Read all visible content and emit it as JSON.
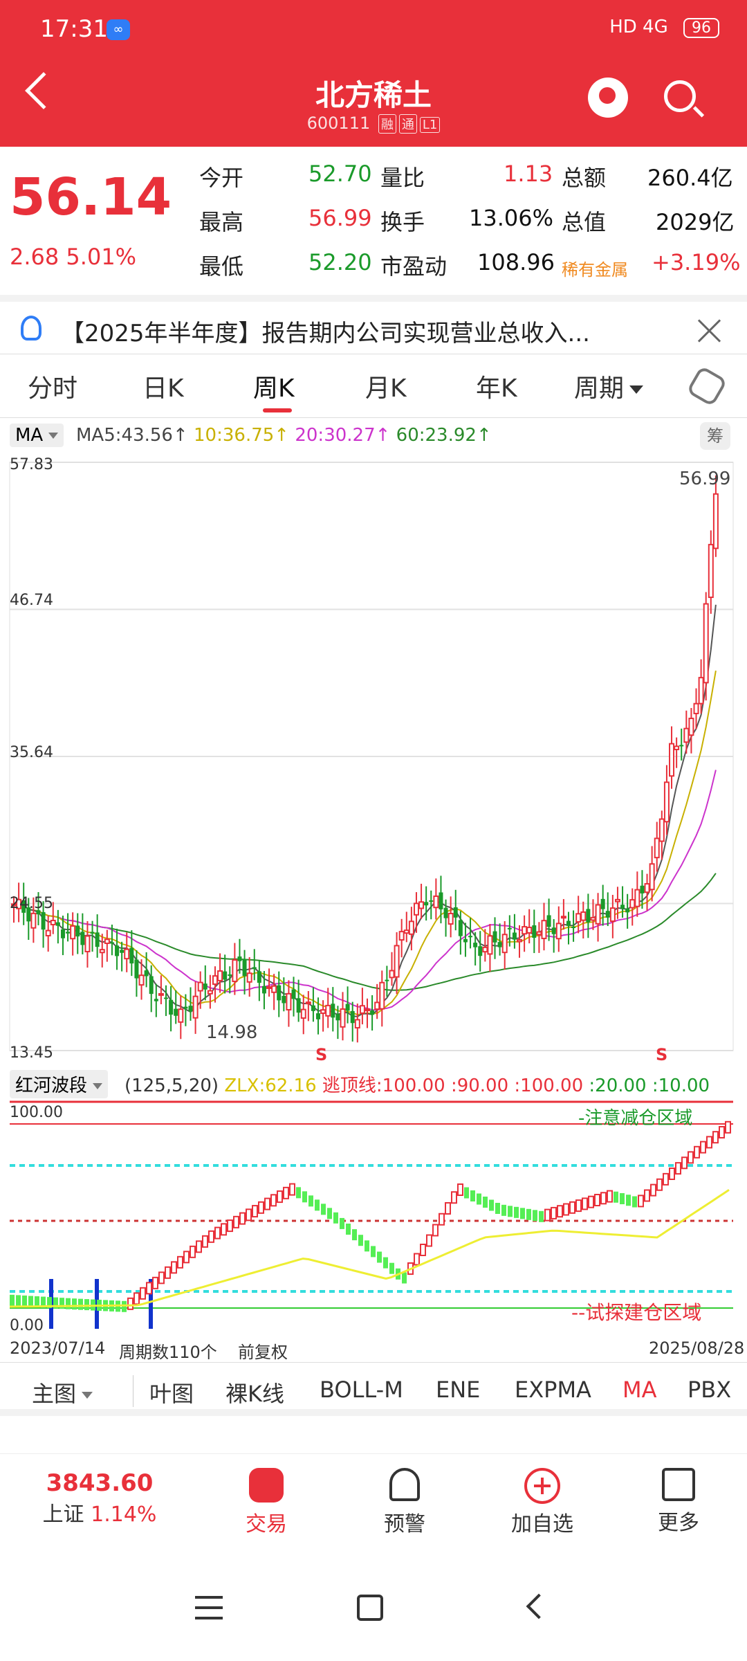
{
  "status": {
    "time": "17:31",
    "right": "HD 4G",
    "battery": "96"
  },
  "header": {
    "title": "北方稀土",
    "code": "600111",
    "tag1": "融",
    "tag2": "通",
    "tag3": "L1"
  },
  "quote": {
    "price": "56.14",
    "change": "2.68 5.01%",
    "open_label": "今开",
    "open": "52.70",
    "vr_label": "量比",
    "vr": "1.13",
    "amt_label": "总额",
    "amt": "260.4亿",
    "high_label": "最高",
    "high": "56.99",
    "turnover_label": "换手",
    "turnover": "13.06%",
    "mcap_label": "总值",
    "mcap": "2029亿",
    "low_label": "最低",
    "low": "52.20",
    "pe_label": "市盈动",
    "pe": "108.96",
    "sector": "稀有金属",
    "sector_change": "+3.19%"
  },
  "notice": {
    "text": "【2025年半年度】报告期内公司实现营业总收入..."
  },
  "tabs": [
    "分时",
    "日K",
    "周K",
    "月K",
    "年K",
    "周期"
  ],
  "ma": {
    "select": "MA",
    "ma5": "MA5:43.56↑",
    "ma10": "10:36.75↑",
    "ma20": "20:30.27↑",
    "ma60": "60:23.92↑",
    "chip": "筹"
  },
  "chart_data": {
    "type": "candlestick",
    "y_labels": [
      "57.83",
      "46.74",
      "35.64",
      "24.55",
      "13.45"
    ],
    "ylim": [
      13.45,
      57.83
    ],
    "max_label": "56.99",
    "min_label": "14.98",
    "signals": [
      "S",
      "S"
    ],
    "x_start": "2023/07/14",
    "x_end": "2025/08/28",
    "period_count": "周期数110个",
    "adjust": "前复权",
    "colors": {
      "up": "#e8303a",
      "down": "#1a9a2a",
      "ma5": "#555555",
      "ma10": "#c8b000",
      "ma20": "#cc33cc",
      "ma60": "#2a8a2a"
    }
  },
  "indicator": {
    "select": "红河波段",
    "params": "(125,5,20)",
    "zlx": "ZLX:62.16",
    "escape": "逃顶线:100.00",
    "v1": ":90.00",
    "v2": ":100.00",
    "v3": ":20.00",
    "v4": ":10.00",
    "top_label": "100.00",
    "bottom_label": "0.00",
    "zone_top": "-注意减仓区域",
    "zone_bottom": "--试探建仓区域"
  },
  "bottom_tabs": [
    "主图",
    "叶图",
    "裸K线",
    "BOLL-M",
    "ENE",
    "EXPMA",
    "MA",
    "PBX"
  ],
  "nav": {
    "index_value": "3843.60",
    "index_name": "上证",
    "index_change": "1.14%",
    "trade": "交易",
    "alert": "预警",
    "add": "加自选",
    "more": "更多"
  }
}
